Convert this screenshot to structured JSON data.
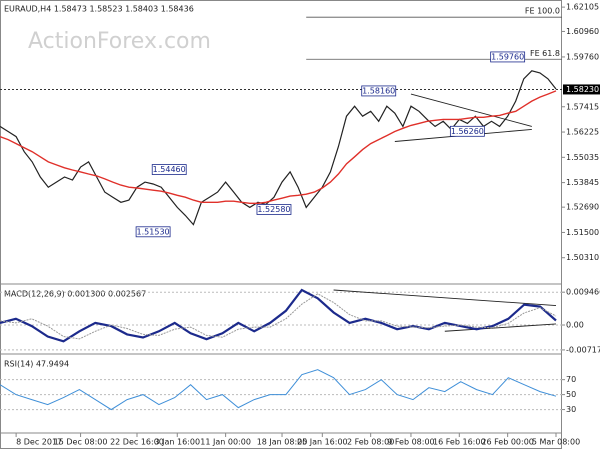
{
  "watermark": "ActionForex.com",
  "chart_data": [
    {
      "type": "line",
      "title": "EURAUD,H4 1.58473 1.58523 1.58403 1.58436",
      "ylim": [
        1.4912,
        1.6244
      ],
      "yticks": [
        1.62105,
        {
          "value": 1.6096,
          "label": "1.60960"
        },
        {
          "value": 1.5976,
          "label": "1.59760"
        },
        1.57415,
        1.56225,
        1.55035,
        1.53845,
        {
          "value": 1.5269,
          "label": "1.52690"
        },
        {
          "value": 1.515,
          "label": "1.51500"
        },
        {
          "value": 1.5031,
          "label": "1.50310"
        }
      ],
      "xticks": [
        {
          "value": 2,
          "label": "8 Dec 2017"
        },
        {
          "value": 10,
          "label": "15 Dec 08:00"
        },
        {
          "value": 17,
          "label": "22 Dec 16:00"
        },
        {
          "value": 22,
          "label": "3 Jan 16:00"
        },
        {
          "value": 28,
          "label": "11 Jan 00:00"
        },
        {
          "value": 35,
          "label": "18 Jan 08:00"
        },
        {
          "value": 40,
          "label": "25 Jan 16:00"
        },
        {
          "value": 46,
          "label": "2 Feb 08:00"
        },
        {
          "value": 51,
          "label": "9 Feb 08:00"
        },
        {
          "value": 57,
          "label": "16 Feb 16:00"
        },
        {
          "value": 63,
          "label": "26 Feb 00:00"
        },
        {
          "value": 69,
          "label": "5 Mar 08:00"
        }
      ],
      "current_price": {
        "value": 1.5823,
        "label": "1.58230"
      },
      "levels": [
        {
          "label": "FE 100.0",
          "value": 1.6163,
          "start": 38
        },
        {
          "label": "FE 61.8",
          "value": 1.5965,
          "start": 38
        }
      ],
      "annotations": [
        {
          "label": "1.59760",
          "value": 1.5976,
          "index": 63
        },
        {
          "label": "1.58160",
          "value": 1.5816,
          "index": 47
        },
        {
          "label": "1.56260",
          "value": 1.5626,
          "index": 58
        },
        {
          "label": "1.54460",
          "value": 1.5446,
          "index": 21
        },
        {
          "label": "1.52580",
          "value": 1.5258,
          "index": 34
        },
        {
          "label": "1.51530",
          "value": 1.5153,
          "index": 19
        }
      ],
      "trendlines": [
        {
          "index": [
            51,
            66
          ],
          "values": [
            1.5801,
            1.5649
          ]
        },
        {
          "index": [
            49,
            66
          ],
          "values": [
            1.5578,
            1.5635
          ]
        }
      ],
      "series": [
        {
          "name": "Close",
          "color": "#222222",
          "width": 1.2,
          "values": [
            1.5649,
            1.5625,
            1.5601,
            1.553,
            1.5482,
            1.5411,
            1.5363,
            1.5387,
            1.5411,
            1.5397,
            1.5458,
            1.5482,
            1.5411,
            1.534,
            1.5316,
            1.5292,
            1.5302,
            1.5363,
            1.5387,
            1.5378,
            1.5363,
            1.5316,
            1.5268,
            1.523,
            1.5187,
            1.5292,
            1.5316,
            1.534,
            1.5387,
            1.534,
            1.5292,
            1.5268,
            1.5292,
            1.5282,
            1.5316,
            1.5387,
            1.5435,
            1.5363,
            1.5268,
            1.5316,
            1.5363,
            1.5435,
            1.5554,
            1.5697,
            1.5744,
            1.5697,
            1.572,
            1.5673,
            1.5744,
            1.5711,
            1.5649,
            1.5744,
            1.572,
            1.5682,
            1.5649,
            1.5673,
            1.5635,
            1.5682,
            1.5663,
            1.5697,
            1.5649,
            1.5673,
            1.5649,
            1.5697,
            1.5768,
            1.5873,
            1.5911,
            1.5901,
            1.5873,
            1.5825
          ]
        },
        {
          "name": "MA",
          "color": "#e0302a",
          "width": 1.4,
          "values": [
            1.5601,
            1.5587,
            1.5568,
            1.5549,
            1.553,
            1.5506,
            1.5482,
            1.5468,
            1.5454,
            1.5444,
            1.5435,
            1.5425,
            1.5416,
            1.5402,
            1.5387,
            1.5373,
            1.5363,
            1.5359,
            1.5354,
            1.5349,
            1.5344,
            1.5335,
            1.5325,
            1.5316,
            1.5302,
            1.5292,
            1.5292,
            1.5292,
            1.5297,
            1.5297,
            1.5292,
            1.5287,
            1.5287,
            1.5292,
            1.5302,
            1.5311,
            1.5321,
            1.5325,
            1.533,
            1.534,
            1.5359,
            1.5387,
            1.5425,
            1.5473,
            1.5506,
            1.554,
            1.5568,
            1.5587,
            1.5606,
            1.5625,
            1.564,
            1.5654,
            1.5663,
            1.5673,
            1.5678,
            1.5682,
            1.5682,
            1.5682,
            1.5687,
            1.5692,
            1.5692,
            1.5697,
            1.5701,
            1.5711,
            1.572,
            1.5744,
            1.5768,
            1.5787,
            1.5801,
            1.5816
          ]
        }
      ]
    },
    {
      "type": "line",
      "title": "MACD(12,26,9) 0.001300 0.002567",
      "ylim": [
        -0.00807,
        0.01154
      ],
      "yticks": [
        0.009466,
        {
          "value": 0,
          "label": "0.00"
        },
        -0.007178
      ],
      "trendlines": [
        {
          "index": [
            21,
            35
          ],
          "values": [
            0.0101,
            0.0056
          ]
        },
        {
          "index": [
            28,
            35
          ],
          "values": [
            -0.0018,
            0.0003
          ]
        }
      ],
      "series": [
        {
          "name": "MACD",
          "color": "#1c2a8c",
          "width": 2.2,
          "values": [
            0.0006,
            0.0018,
            -0.0003,
            -0.0033,
            -0.0047,
            -0.0018,
            0.0006,
            -0.0003,
            -0.0027,
            -0.0036,
            -0.0018,
            0.0006,
            -0.0024,
            -0.0041,
            -0.0024,
            0.0006,
            -0.0018,
            0.0006,
            0.0041,
            0.0101,
            0.0077,
            0.0036,
            0.0006,
            0.0018,
            0.0006,
            -0.0012,
            -0.0003,
            -0.0012,
            0.0006,
            -0.0003,
            -0.0012,
            -0.0003,
            0.0018,
            0.0059,
            0.0053,
            0.0013
          ]
        },
        {
          "name": "Signal",
          "color": "#999999",
          "width": 1,
          "values": [
            0.0012,
            0.0006,
            0.0018,
            -0.0003,
            -0.0033,
            -0.004,
            -0.0018,
            0,
            -0.001,
            -0.0027,
            -0.003,
            -0.0012,
            -0.0006,
            -0.003,
            -0.0035,
            -0.0012,
            -0.0006,
            -0.0006,
            0.0018,
            0.006,
            0.009,
            0.0065,
            0.003,
            0.0012,
            0.0012,
            -0.0003,
            -0.0006,
            -0.0008,
            -0.0003,
            0,
            -0.0006,
            -0.0008,
            0.0005,
            0.0035,
            0.005,
            0.0026
          ]
        }
      ]
    },
    {
      "type": "line",
      "title": "RSI(14) 47.9494",
      "ylim": [
        0,
        103
      ],
      "yticks": [
        70,
        50,
        30
      ],
      "series": [
        {
          "name": "RSI",
          "color": "#3f8fd8",
          "width": 1,
          "values": [
            63.3,
            50,
            43.3,
            36.7,
            46,
            56.7,
            43.3,
            30,
            43.3,
            50,
            36.7,
            46,
            63.3,
            43.3,
            50,
            32.7,
            43.3,
            50,
            50,
            76.7,
            83.3,
            72.7,
            50,
            56.7,
            70,
            50,
            43.3,
            59.3,
            54,
            67.3,
            56.7,
            50,
            72.7,
            63.3,
            54,
            47.9
          ]
        }
      ]
    }
  ]
}
